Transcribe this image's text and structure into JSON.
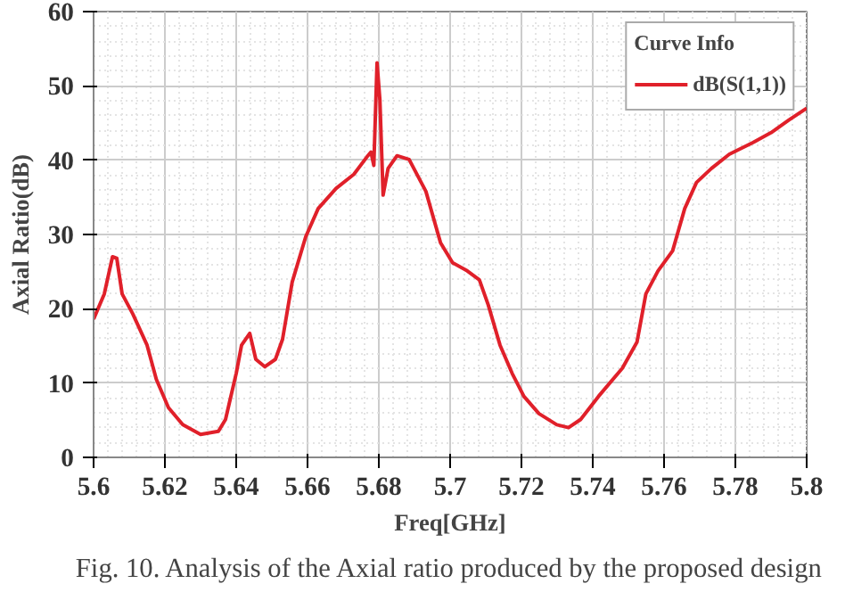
{
  "chart_data": {
    "type": "line",
    "xlabel": "Freq[GHz]",
    "ylabel": "Axial Ratio(dB)",
    "legend_title": "Curve Info",
    "legend": "top right",
    "grid": true,
    "line_style": "solid",
    "xlim": [
      5.6,
      5.8
    ],
    "ylim": [
      0,
      60
    ],
    "xticks": [
      5.6,
      5.62,
      5.64,
      5.66,
      5.68,
      {
        "value": 5.7,
        "label": "5.7"
      },
      5.72,
      5.74,
      5.76,
      5.78,
      {
        "value": 5.8,
        "label": "5.8"
      }
    ],
    "yticks": [
      0,
      10,
      20,
      30,
      40,
      50,
      60
    ],
    "annotations": [
      "Fig. 10. Analysis of the Axial ratio produced by the proposed design"
    ],
    "series": [
      {
        "name": "dB(S(1,1))",
        "color": "#e0202a",
        "x": [
          5.6,
          5.603,
          5.6053,
          5.6065,
          5.608,
          5.611,
          5.615,
          5.6176,
          5.621,
          5.625,
          5.63,
          5.635,
          5.637,
          5.64,
          5.6415,
          5.6438,
          5.6455,
          5.648,
          5.651,
          5.653,
          5.6557,
          5.6595,
          5.663,
          5.668,
          5.673,
          5.6766,
          5.6778,
          5.6786,
          5.6795,
          5.6803,
          5.6812,
          5.6826,
          5.6851,
          5.6885,
          5.6932,
          5.6973,
          5.7007,
          5.7048,
          5.7082,
          5.7107,
          5.714,
          5.7174,
          5.7207,
          5.7249,
          5.7299,
          5.7332,
          5.7366,
          5.7416,
          5.7483,
          5.7524,
          5.7549,
          5.7583,
          5.7624,
          5.7658,
          5.7691,
          5.7733,
          5.7783,
          5.785,
          5.79,
          5.795,
          5.8
        ],
        "values": [
          18.6,
          22,
          27,
          26.8,
          22,
          19.3,
          15.1,
          10.5,
          6.7,
          4.4,
          3.1,
          3.5,
          5.1,
          11.3,
          15.1,
          16.7,
          13.2,
          12.2,
          13.2,
          15.9,
          23.6,
          29.7,
          33.5,
          36.2,
          38.1,
          40.4,
          41.1,
          39.3,
          53.1,
          48.1,
          35.3,
          38.9,
          40.6,
          40.1,
          35.8,
          28.9,
          26.2,
          25.1,
          23.9,
          20.5,
          15.1,
          11.3,
          8.2,
          5.9,
          4.4,
          4.0,
          5.1,
          8.2,
          12.0,
          15.5,
          22.0,
          25.1,
          27.8,
          33.5,
          37.0,
          38.9,
          40.8,
          42.4,
          43.7,
          45.4,
          47.0
        ]
      }
    ]
  }
}
